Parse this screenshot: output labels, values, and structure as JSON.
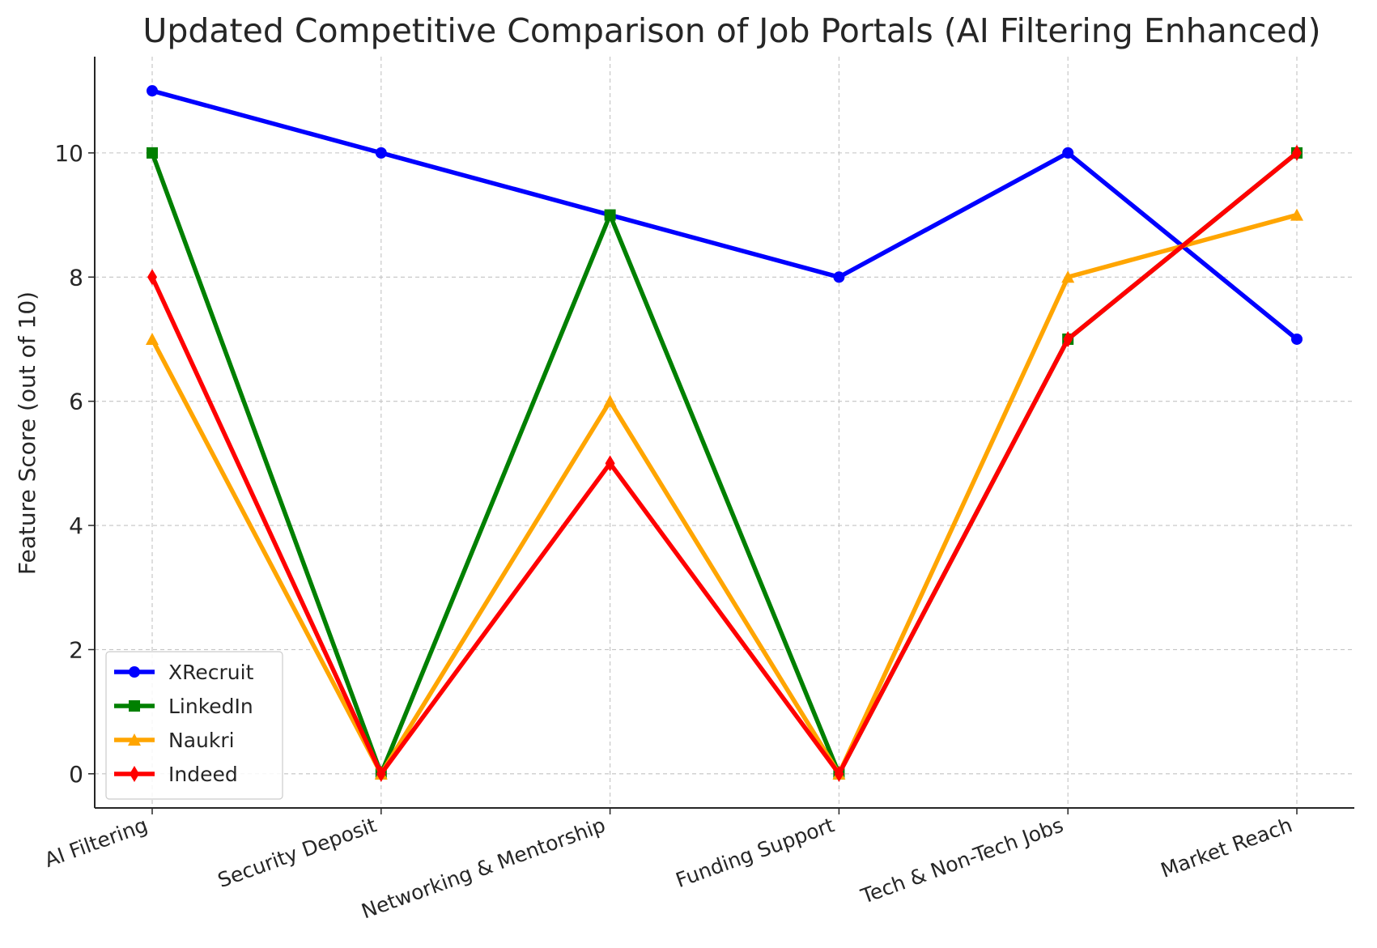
{
  "chart_data": {
    "type": "line",
    "title": "Updated Competitive Comparison of Job Portals (AI Filtering Enhanced)",
    "xlabel": "",
    "ylabel": "Feature Score (out of 10)",
    "categories": [
      "AI Filtering",
      "Security Deposit",
      "Networking & Mentorship",
      "Funding Support",
      "Tech & Non-Tech Jobs",
      "Market Reach"
    ],
    "ylim": [
      -0.55,
      11.55
    ],
    "yticks": [
      0,
      2,
      4,
      6,
      8,
      10
    ],
    "grid": true,
    "legend_position": "lower-left",
    "series": [
      {
        "name": "XRecruit",
        "values": [
          11,
          10,
          9,
          8,
          10,
          7
        ],
        "color": "#0000ff",
        "marker": "circle"
      },
      {
        "name": "LinkedIn",
        "values": [
          10,
          0,
          9,
          0,
          7,
          10
        ],
        "color": "#008000",
        "marker": "square"
      },
      {
        "name": "Naukri",
        "values": [
          7,
          0,
          6,
          0,
          8,
          9
        ],
        "color": "#ffa500",
        "marker": "triangle"
      },
      {
        "name": "Indeed",
        "values": [
          8,
          0,
          5,
          0,
          7,
          10
        ],
        "color": "#ff0000",
        "marker": "diamond"
      }
    ]
  }
}
